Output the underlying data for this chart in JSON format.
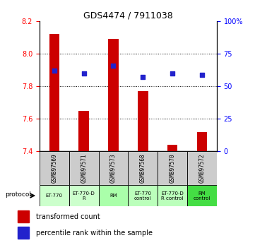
{
  "title": "GDS4474 / 7911038",
  "samples": [
    "GSM897569",
    "GSM897571",
    "GSM897573",
    "GSM897568",
    "GSM897570",
    "GSM897572"
  ],
  "bar_values": [
    8.12,
    7.65,
    8.09,
    7.77,
    7.44,
    7.52
  ],
  "bar_bottom": 7.4,
  "scatter_percentiles": [
    62,
    60,
    66,
    57,
    60,
    59
  ],
  "ylim": [
    7.4,
    8.2
  ],
  "right_ylim": [
    0,
    100
  ],
  "right_yticks": [
    0,
    25,
    50,
    75,
    100
  ],
  "right_yticklabels": [
    "0",
    "25",
    "50",
    "75",
    "100%"
  ],
  "left_yticks": [
    7.4,
    7.6,
    7.8,
    8.0,
    8.2
  ],
  "bar_color": "#cc0000",
  "scatter_color": "#2222cc",
  "protocol_labels": [
    "ET-770",
    "ET-770-D\nR",
    "RM",
    "ET-770\ncontrol",
    "ET-770-D\nR control",
    "RM\ncontrol"
  ],
  "proto_colors": [
    "#ccffcc",
    "#ccffcc",
    "#ccffcc",
    "#88ee88",
    "#88ee88",
    "#44cc44"
  ],
  "legend_bar_label": "transformed count",
  "legend_scatter_label": "percentile rank within the sample"
}
